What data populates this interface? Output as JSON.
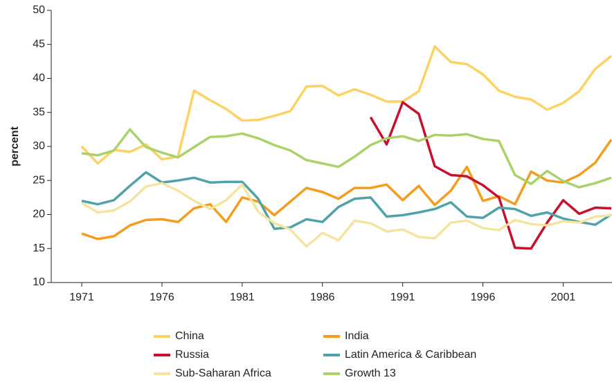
{
  "chart_data": {
    "type": "line",
    "y_label": "percent",
    "x": [
      1971,
      1972,
      1973,
      1974,
      1975,
      1976,
      1977,
      1978,
      1979,
      1980,
      1981,
      1982,
      1983,
      1984,
      1985,
      1986,
      1987,
      1988,
      1989,
      1990,
      1991,
      1992,
      1993,
      1994,
      1995,
      1996,
      1997,
      1998,
      1999,
      2000,
      2001,
      2002,
      2003,
      2004
    ],
    "xlim": [
      1969.1,
      2004
    ],
    "xticks": [
      1971,
      1976,
      1981,
      1986,
      1991,
      1996,
      2001
    ],
    "ylim": [
      10,
      50
    ],
    "yticks": [
      10,
      15,
      20,
      25,
      30,
      35,
      40,
      45,
      50
    ],
    "series": [
      {
        "name": "China",
        "color": "#fdd262",
        "values": [
          30,
          27.5,
          29.5,
          29.2,
          30.3,
          28.1,
          28.5,
          38.2,
          36.8,
          35.5,
          33.8,
          33.9,
          34.5,
          35.2,
          38.8,
          38.9,
          37.5,
          38.4,
          37.6,
          36.6,
          36.6,
          38.1,
          44.7,
          42.4,
          42.1,
          40.6,
          38.2,
          37.3,
          36.9,
          35.4,
          36.4,
          38.1,
          41.4,
          43.3
        ]
      },
      {
        "name": "India",
        "color": "#f59c1e",
        "values": [
          17.2,
          16.4,
          16.8,
          18.4,
          19.2,
          19.3,
          18.9,
          20.9,
          21.5,
          18.9,
          22.5,
          21.9,
          19.9,
          21.9,
          23.9,
          23.3,
          22.3,
          23.9,
          23.9,
          24.4,
          22.1,
          24.2,
          21.4,
          23.5,
          27.0,
          22.0,
          22.7,
          21.5,
          26.3,
          25.0,
          24.7,
          25.8,
          27.6,
          31.0
        ]
      },
      {
        "name": "Russia",
        "color": "#c8102e",
        "values": [
          null,
          null,
          null,
          null,
          null,
          null,
          null,
          null,
          null,
          null,
          null,
          null,
          null,
          null,
          null,
          null,
          null,
          null,
          34.3,
          30.3,
          36.5,
          34.8,
          27.1,
          25.8,
          25.6,
          24.3,
          22.5,
          15.1,
          15.0,
          18.8,
          22.1,
          20.1,
          21.0,
          20.9
        ]
      },
      {
        "name": "Latin America & Caribbean",
        "color": "#4fa3a8",
        "values": [
          22.0,
          21.5,
          22.1,
          24.2,
          26.2,
          24.7,
          25.0,
          25.4,
          24.7,
          24.8,
          24.8,
          22.3,
          17.9,
          18.1,
          19.3,
          18.9,
          21.1,
          22.3,
          22.5,
          19.7,
          19.9,
          20.3,
          20.8,
          21.8,
          19.7,
          19.5,
          21.0,
          20.8,
          19.8,
          20.3,
          19.4,
          18.9,
          18.5,
          20.0
        ]
      },
      {
        "name": "Sub-Saharan Africa",
        "color": "#f4e4a0",
        "values": [
          21.7,
          20.3,
          20.6,
          21.9,
          24.1,
          24.6,
          23.5,
          22.0,
          20.8,
          22.1,
          24.4,
          20.4,
          18.7,
          17.8,
          15.3,
          17.3,
          16.2,
          19.1,
          18.7,
          17.5,
          17.8,
          16.7,
          16.5,
          18.8,
          19.1,
          18.0,
          17.7,
          19.2,
          18.6,
          18.4,
          19.0,
          18.8,
          19.7,
          19.9
        ]
      },
      {
        "name": "Growth 13",
        "color": "#a8d26a",
        "values": [
          29.0,
          28.7,
          29.4,
          32.5,
          29.9,
          29.1,
          28.4,
          29.9,
          31.4,
          31.5,
          31.9,
          31.2,
          30.2,
          29.4,
          28.0,
          27.5,
          27.0,
          28.5,
          30.2,
          31.2,
          31.5,
          30.8,
          31.7,
          31.6,
          31.8,
          31.1,
          30.8,
          25.8,
          24.5,
          26.4,
          24.9,
          24.0,
          24.6,
          25.4
        ]
      }
    ]
  }
}
